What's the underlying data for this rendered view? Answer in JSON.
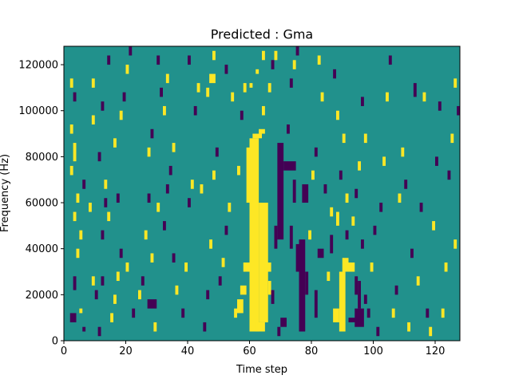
{
  "chart_data": {
    "type": "heatmap",
    "title": "Predicted : Gma",
    "xlabel": "Time step",
    "ylabel": "Frequency (Hz)",
    "xlim": [
      0,
      128
    ],
    "ylim": [
      0,
      128000
    ],
    "x_ticks": [
      0,
      20,
      40,
      60,
      80,
      100,
      120
    ],
    "y_ticks": [
      0,
      20000,
      40000,
      60000,
      80000,
      100000,
      120000
    ],
    "x_tick_labels": [
      "0",
      "20",
      "40",
      "60",
      "80",
      "100",
      "120"
    ],
    "y_tick_labels": [
      "0",
      "20000",
      "40000",
      "60000",
      "80000",
      "100000",
      "120000"
    ],
    "grid": false,
    "legend": "none",
    "rows": 128,
    "cols": 128,
    "colors": {
      "background": "#21918c",
      "high": "#fde725",
      "low": "#440154"
    },
    "values_legend": {
      "-1": "low",
      "0": "background",
      "1": "high"
    },
    "cells_note_values": "each entry [x_start, x_end, y_start, y_end, value] in data units (time step, Hz)",
    "cells": [
      [
        60,
        63,
        4000,
        88000,
        1
      ],
      [
        61,
        64,
        88000,
        90000,
        1
      ],
      [
        59,
        61,
        60000,
        84000,
        1
      ],
      [
        57,
        59,
        20000,
        24000,
        1
      ],
      [
        58,
        60,
        30000,
        34000,
        1
      ],
      [
        63,
        66,
        8000,
        60000,
        1
      ],
      [
        62,
        65,
        4000,
        8000,
        1
      ],
      [
        63,
        65,
        90000,
        92000,
        1
      ],
      [
        56,
        58,
        12000,
        18000,
        1
      ],
      [
        65,
        67,
        30000,
        34000,
        1
      ],
      [
        66,
        67,
        20000,
        26000,
        1
      ],
      [
        60,
        61,
        110000,
        112000,
        1
      ],
      [
        62,
        63,
        116000,
        118000,
        1
      ],
      [
        64,
        65,
        122000,
        126000,
        1
      ],
      [
        69,
        71,
        44000,
        86000,
        -1
      ],
      [
        70,
        72,
        6000,
        10000,
        -1
      ],
      [
        69,
        70,
        2000,
        6000,
        -1
      ],
      [
        71,
        75,
        74000,
        78000,
        -1
      ],
      [
        67,
        68,
        16000,
        22000,
        -1
      ],
      [
        68,
        69,
        40000,
        50000,
        -1
      ],
      [
        76,
        78,
        4000,
        44000,
        -1
      ],
      [
        75,
        76,
        30000,
        42000,
        -1
      ],
      [
        77,
        79,
        60000,
        68000,
        -1
      ],
      [
        74,
        75,
        60000,
        70000,
        -1
      ],
      [
        78,
        79,
        20000,
        30000,
        -1
      ],
      [
        73,
        74,
        40000,
        50000,
        -1
      ],
      [
        81,
        82,
        10000,
        22000,
        -1
      ],
      [
        82,
        84,
        36000,
        40000,
        -1
      ],
      [
        86,
        87,
        38000,
        46000,
        -1
      ],
      [
        89,
        91,
        4000,
        30000,
        1
      ],
      [
        87,
        89,
        8000,
        14000,
        1
      ],
      [
        90,
        92,
        30000,
        36000,
        1
      ],
      [
        88,
        89,
        50000,
        56000,
        1
      ],
      [
        92,
        94,
        30000,
        34000,
        1
      ],
      [
        91,
        92,
        60000,
        64000,
        1
      ],
      [
        94,
        97,
        6000,
        14000,
        -1
      ],
      [
        92,
        95,
        8000,
        10000,
        -1
      ],
      [
        95,
        96,
        14000,
        26000,
        -1
      ],
      [
        94,
        95,
        20000,
        28000,
        -1
      ],
      [
        96,
        97,
        40000,
        44000,
        -1
      ],
      [
        97,
        98,
        16000,
        20000,
        -1
      ],
      [
        98,
        99,
        10000,
        14000,
        -1
      ],
      [
        2,
        4,
        8000,
        12000,
        -1
      ],
      [
        3,
        4,
        22000,
        28000,
        -1
      ],
      [
        5,
        6,
        12000,
        14000,
        1
      ],
      [
        6,
        7,
        4000,
        6000,
        -1
      ],
      [
        4,
        5,
        36000,
        40000,
        1
      ],
      [
        5,
        6,
        44000,
        48000,
        1
      ],
      [
        3,
        4,
        52000,
        56000,
        1
      ],
      [
        4,
        5,
        60000,
        64000,
        1
      ],
      [
        2,
        3,
        72000,
        76000,
        1
      ],
      [
        3,
        4,
        78000,
        86000,
        1
      ],
      [
        2,
        3,
        90000,
        94000,
        1
      ],
      [
        2,
        3,
        110000,
        114000,
        1
      ],
      [
        3,
        4,
        104000,
        108000,
        -1
      ],
      [
        6,
        7,
        66000,
        70000,
        -1
      ],
      [
        8,
        9,
        56000,
        60000,
        1
      ],
      [
        9,
        10,
        24000,
        28000,
        1
      ],
      [
        10,
        11,
        18000,
        22000,
        -1
      ],
      [
        11,
        12,
        2000,
        6000,
        -1
      ],
      [
        12,
        13,
        24000,
        28000,
        -1
      ],
      [
        12,
        13,
        44000,
        48000,
        -1
      ],
      [
        13,
        14,
        58000,
        62000,
        -1
      ],
      [
        14,
        15,
        52000,
        56000,
        1
      ],
      [
        13,
        14,
        66000,
        70000,
        1
      ],
      [
        11,
        12,
        78000,
        82000,
        -1
      ],
      [
        9,
        10,
        94000,
        98000,
        1
      ],
      [
        12,
        13,
        100000,
        104000,
        -1
      ],
      [
        14,
        15,
        120000,
        124000,
        -1
      ],
      [
        9,
        10,
        110000,
        114000,
        1
      ],
      [
        15,
        16,
        8000,
        12000,
        1
      ],
      [
        16,
        17,
        16000,
        20000,
        1
      ],
      [
        17,
        18,
        26000,
        30000,
        1
      ],
      [
        18,
        19,
        36000,
        40000,
        -1
      ],
      [
        17,
        18,
        60000,
        64000,
        -1
      ],
      [
        16,
        17,
        84000,
        88000,
        1
      ],
      [
        18,
        19,
        96000,
        100000,
        1
      ],
      [
        19,
        20,
        104000,
        108000,
        -1
      ],
      [
        20,
        21,
        116000,
        120000,
        1
      ],
      [
        21,
        22,
        124000,
        128000,
        -1
      ],
      [
        20,
        21,
        30000,
        34000,
        1
      ],
      [
        22,
        23,
        10000,
        14000,
        -1
      ],
      [
        24,
        25,
        18000,
        22000,
        1
      ],
      [
        25,
        26,
        24000,
        28000,
        -1
      ],
      [
        26,
        27,
        44000,
        48000,
        1
      ],
      [
        27,
        28,
        60000,
        64000,
        -1
      ],
      [
        27,
        28,
        80000,
        84000,
        1
      ],
      [
        28,
        29,
        88000,
        92000,
        -1
      ],
      [
        27,
        30,
        14000,
        18000,
        -1
      ],
      [
        29,
        30,
        4000,
        8000,
        1
      ],
      [
        28,
        29,
        34000,
        38000,
        1
      ],
      [
        30,
        31,
        56000,
        60000,
        1
      ],
      [
        32,
        33,
        48000,
        52000,
        -1
      ],
      [
        33,
        34,
        64000,
        68000,
        -1
      ],
      [
        34,
        35,
        72000,
        76000,
        -1
      ],
      [
        35,
        36,
        82000,
        86000,
        1
      ],
      [
        31,
        32,
        106000,
        110000,
        -1
      ],
      [
        33,
        34,
        112000,
        116000,
        1
      ],
      [
        30,
        31,
        120000,
        124000,
        -1
      ],
      [
        32,
        33,
        98000,
        102000,
        1
      ],
      [
        35,
        36,
        34000,
        38000,
        -1
      ],
      [
        36,
        37,
        20000,
        24000,
        1
      ],
      [
        38,
        39,
        10000,
        14000,
        -1
      ],
      [
        39,
        40,
        30000,
        34000,
        1
      ],
      [
        40,
        41,
        58000,
        62000,
        -1
      ],
      [
        41,
        42,
        66000,
        70000,
        1
      ],
      [
        42,
        43,
        98000,
        102000,
        -1
      ],
      [
        43,
        44,
        108000,
        112000,
        1
      ],
      [
        40,
        41,
        120000,
        124000,
        -1
      ],
      [
        44,
        45,
        64000,
        68000,
        1
      ],
      [
        45,
        46,
        4000,
        8000,
        -1
      ],
      [
        46,
        47,
        18000,
        22000,
        -1
      ],
      [
        47,
        48,
        40000,
        44000,
        1
      ],
      [
        48,
        49,
        70000,
        74000,
        1
      ],
      [
        49,
        50,
        80000,
        84000,
        -1
      ],
      [
        46,
        47,
        106000,
        110000,
        1
      ],
      [
        47,
        49,
        112000,
        116000,
        1
      ],
      [
        48,
        49,
        122000,
        126000,
        1
      ],
      [
        50,
        51,
        24000,
        28000,
        -1
      ],
      [
        51,
        52,
        32000,
        36000,
        1
      ],
      [
        52,
        53,
        46000,
        50000,
        -1
      ],
      [
        53,
        54,
        56000,
        60000,
        1
      ],
      [
        54,
        55,
        104000,
        108000,
        1
      ],
      [
        52,
        53,
        116000,
        120000,
        -1
      ],
      [
        55,
        56,
        10000,
        14000,
        1
      ],
      [
        56,
        57,
        72000,
        76000,
        1
      ],
      [
        57,
        58,
        96000,
        100000,
        -1
      ],
      [
        58,
        59,
        108000,
        112000,
        1
      ],
      [
        64,
        65,
        98000,
        102000,
        1
      ],
      [
        66,
        67,
        108000,
        112000,
        1
      ],
      [
        67,
        68,
        118000,
        122000,
        -1
      ],
      [
        68,
        69,
        122000,
        126000,
        1
      ],
      [
        72,
        73,
        90000,
        94000,
        -1
      ],
      [
        73,
        74,
        110000,
        114000,
        -1
      ],
      [
        74,
        75,
        118000,
        122000,
        1
      ],
      [
        75,
        76,
        124000,
        128000,
        -1
      ],
      [
        79,
        80,
        44000,
        48000,
        1
      ],
      [
        80,
        81,
        70000,
        74000,
        1
      ],
      [
        81,
        82,
        80000,
        84000,
        -1
      ],
      [
        82,
        83,
        120000,
        124000,
        1
      ],
      [
        83,
        84,
        104000,
        108000,
        1
      ],
      [
        84,
        85,
        64000,
        68000,
        -1
      ],
      [
        85,
        86,
        26000,
        30000,
        1
      ],
      [
        86,
        87,
        54000,
        58000,
        1
      ],
      [
        87,
        88,
        114000,
        118000,
        -1
      ],
      [
        88,
        89,
        96000,
        100000,
        1
      ],
      [
        89,
        90,
        70000,
        74000,
        -1
      ],
      [
        90,
        91,
        86000,
        90000,
        1
      ],
      [
        91,
        92,
        44000,
        48000,
        -1
      ],
      [
        93,
        94,
        50000,
        54000,
        1
      ],
      [
        94,
        95,
        62000,
        66000,
        -1
      ],
      [
        95,
        96,
        74000,
        78000,
        1
      ],
      [
        96,
        97,
        102000,
        106000,
        -1
      ],
      [
        97,
        98,
        86000,
        90000,
        1
      ],
      [
        99,
        100,
        30000,
        34000,
        1
      ],
      [
        100,
        101,
        46000,
        50000,
        -1
      ],
      [
        101,
        102,
        2000,
        6000,
        -1
      ],
      [
        102,
        103,
        56000,
        60000,
        -1
      ],
      [
        103,
        104,
        76000,
        80000,
        1
      ],
      [
        104,
        105,
        104000,
        108000,
        1
      ],
      [
        105,
        106,
        120000,
        124000,
        -1
      ],
      [
        106,
        107,
        10000,
        14000,
        1
      ],
      [
        107,
        108,
        20000,
        24000,
        -1
      ],
      [
        108,
        109,
        60000,
        64000,
        1
      ],
      [
        109,
        110,
        80000,
        84000,
        1
      ],
      [
        110,
        111,
        66000,
        70000,
        -1
      ],
      [
        111,
        112,
        4000,
        8000,
        1
      ],
      [
        112,
        113,
        36000,
        40000,
        -1
      ],
      [
        113,
        114,
        106000,
        112000,
        -1
      ],
      [
        114,
        115,
        24000,
        28000,
        1
      ],
      [
        115,
        116,
        56000,
        60000,
        -1
      ],
      [
        116,
        117,
        104000,
        108000,
        1
      ],
      [
        117,
        118,
        10000,
        14000,
        -1
      ],
      [
        118,
        119,
        2000,
        6000,
        1
      ],
      [
        119,
        120,
        48000,
        52000,
        1
      ],
      [
        120,
        121,
        76000,
        80000,
        -1
      ],
      [
        121,
        122,
        100000,
        104000,
        -1
      ],
      [
        122,
        123,
        10000,
        14000,
        1
      ],
      [
        123,
        124,
        30000,
        34000,
        1
      ],
      [
        124,
        125,
        70000,
        74000,
        -1
      ],
      [
        125,
        126,
        86000,
        90000,
        1
      ],
      [
        126,
        127,
        110000,
        114000,
        1
      ],
      [
        126,
        127,
        40000,
        44000,
        1
      ],
      [
        127,
        128,
        98000,
        102000,
        -1
      ]
    ]
  }
}
